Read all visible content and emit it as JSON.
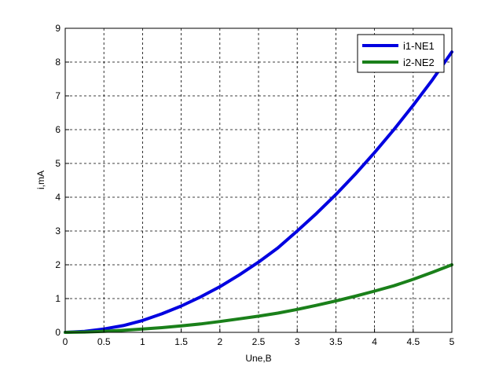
{
  "chart_data": {
    "type": "line",
    "title": "",
    "xlabel": "Une,B",
    "ylabel": "i,mA",
    "xlim": [
      0,
      5
    ],
    "ylim": [
      0,
      9
    ],
    "x_ticks": [
      "0",
      "0.5",
      "1",
      "1.5",
      "2",
      "2.5",
      "3",
      "3.5",
      "4",
      "4.5",
      "5"
    ],
    "y_ticks": [
      "0",
      "1",
      "2",
      "3",
      "4",
      "5",
      "6",
      "7",
      "8",
      "9"
    ],
    "grid": true,
    "legend_position": "top-right",
    "series": [
      {
        "name": "i1-NE1",
        "color": "#0000e0",
        "x": [
          0,
          0.25,
          0.5,
          0.75,
          1,
          1.25,
          1.5,
          1.75,
          2,
          2.25,
          2.5,
          2.75,
          3,
          3.25,
          3.5,
          3.75,
          4,
          4.25,
          4.5,
          4.75,
          5
        ],
        "y": [
          0,
          0.03,
          0.1,
          0.2,
          0.35,
          0.55,
          0.78,
          1.05,
          1.35,
          1.7,
          2.08,
          2.5,
          3.0,
          3.52,
          4.08,
          4.68,
          5.32,
          6.0,
          6.72,
          7.48,
          8.3
        ]
      },
      {
        "name": "i2-NE2",
        "color": "#1a801a",
        "x": [
          0,
          0.25,
          0.5,
          0.75,
          1,
          1.25,
          1.5,
          1.75,
          2,
          2.25,
          2.5,
          2.75,
          3,
          3.25,
          3.5,
          3.75,
          4,
          4.25,
          4.5,
          4.75,
          5
        ],
        "y": [
          0,
          0.01,
          0.03,
          0.06,
          0.1,
          0.14,
          0.19,
          0.25,
          0.32,
          0.4,
          0.48,
          0.57,
          0.68,
          0.8,
          0.93,
          1.07,
          1.22,
          1.38,
          1.57,
          1.78,
          2.0
        ]
      }
    ]
  }
}
